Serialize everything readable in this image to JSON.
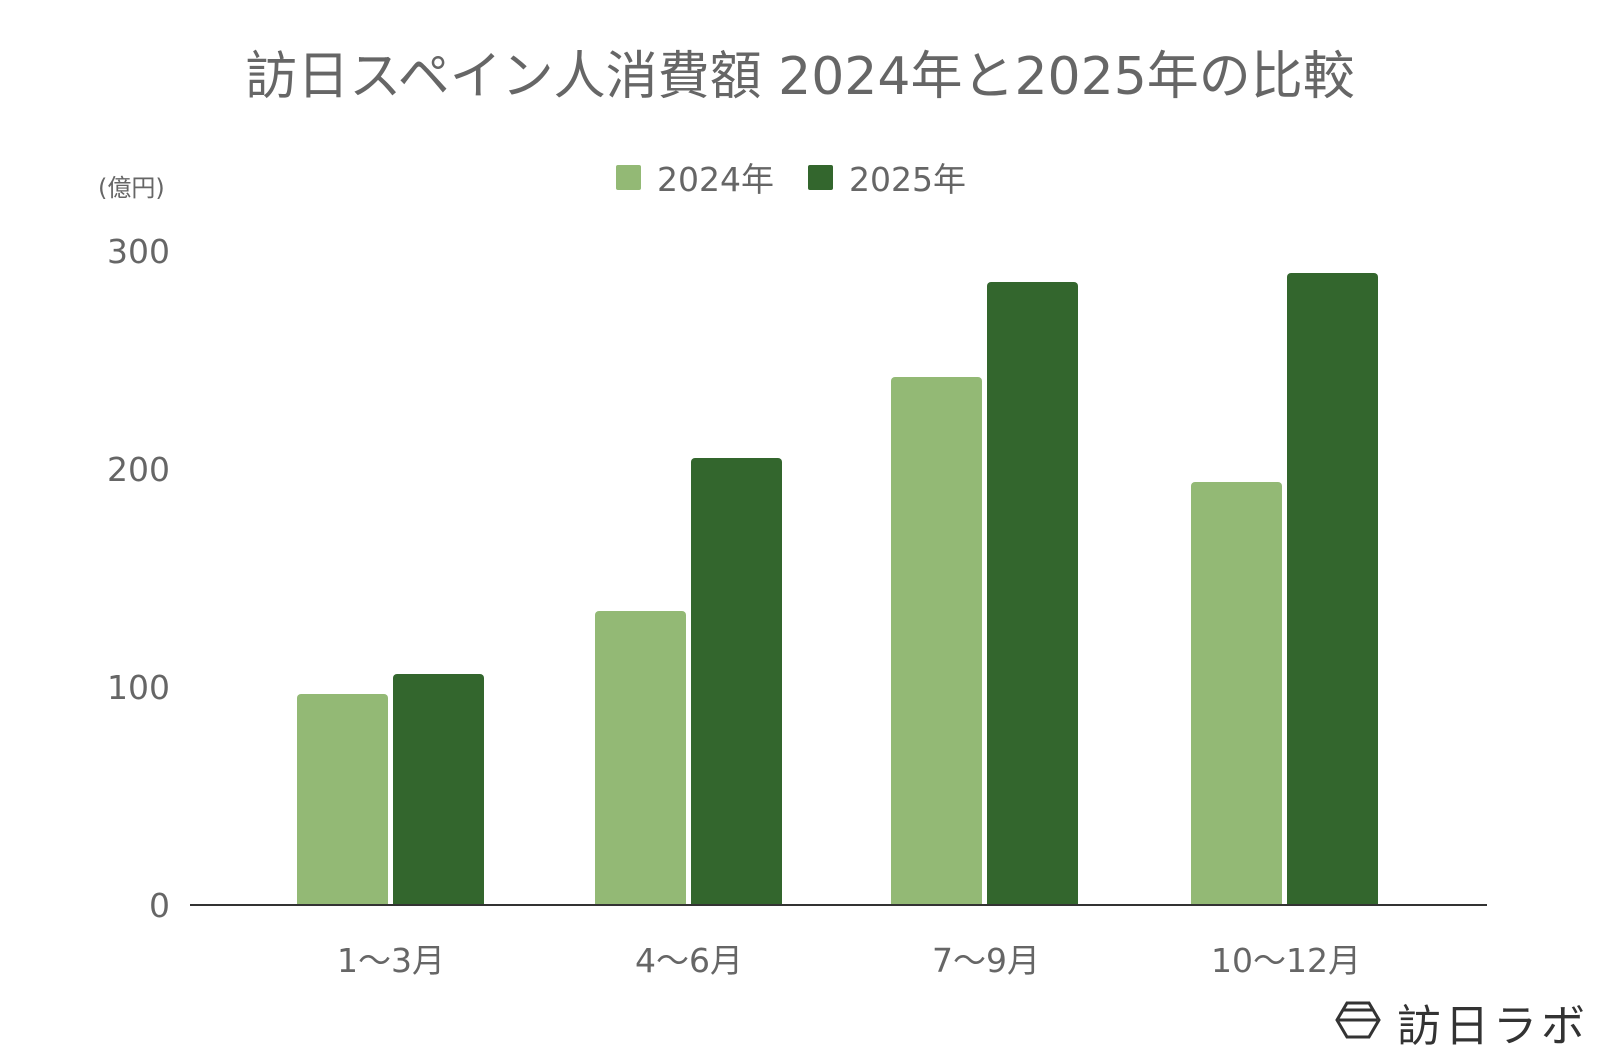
{
  "chart_data": {
    "type": "bar",
    "title": "訪日スペイン人消費額 2024年と2025年の比較",
    "xlabel": "",
    "ylabel": "(億円)",
    "categories": [
      "1〜3月",
      "4〜6月",
      "7〜9月",
      "10〜12月"
    ],
    "series": [
      {
        "name": "2024年",
        "color": "#93b975",
        "values": [
          97,
          135,
          242,
          194
        ]
      },
      {
        "name": "2025年",
        "color": "#33662d",
        "values": [
          106,
          205,
          286,
          290
        ]
      }
    ],
    "yticks": [
      0,
      100,
      200,
      300
    ],
    "ylim": [
      0,
      300
    ],
    "grid": false,
    "legend_position": "top"
  },
  "header": {
    "title": "訪日スペイン人消費額 2024年と2025年の比較",
    "unit": "(億円)"
  },
  "legend": {
    "items": [
      {
        "label": "2024年",
        "color": "#93b975"
      },
      {
        "label": "2025年",
        "color": "#33662d"
      }
    ]
  },
  "axis": {
    "yticks": [
      "300",
      "200",
      "100",
      "0"
    ],
    "xlabels": [
      "1〜3月",
      "4〜6月",
      "7〜9月",
      "10〜12月"
    ]
  },
  "branding": {
    "logo_text": "訪日ラボ",
    "logo_icon": "hexagon-logo-icon"
  },
  "colors": {
    "text": "#666666",
    "axis": "#333333",
    "series_2024": "#93b975",
    "series_2025": "#33662d"
  }
}
